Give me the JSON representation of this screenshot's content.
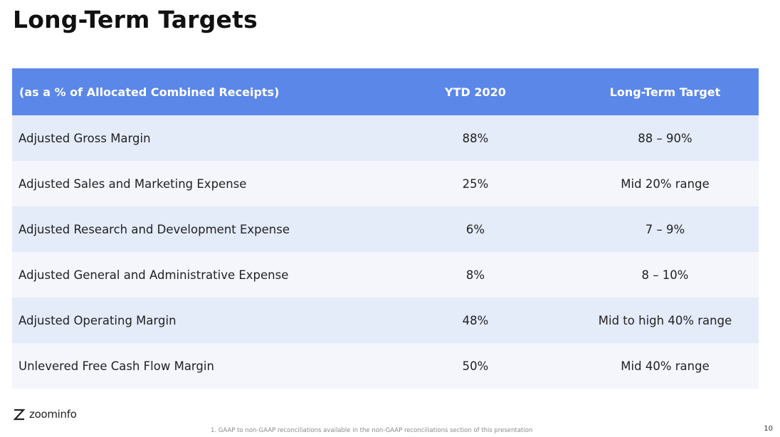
{
  "title": "Long-Term Targets",
  "table": {
    "headers": [
      "(as a % of Allocated Combined Receipts)",
      "YTD 2020",
      "Long-Term Target"
    ],
    "rows": [
      [
        "Adjusted Gross Margin",
        "88%",
        "88 – 90%"
      ],
      [
        "Adjusted Sales and Marketing Expense",
        "25%",
        "Mid 20% range"
      ],
      [
        "Adjusted Research and Development Expense",
        "6%",
        "7 – 9%"
      ],
      [
        "Adjusted General and Administrative Expense",
        "8%",
        "8 – 10%"
      ],
      [
        "Adjusted Operating Margin",
        "48%",
        "Mid to high 40% range"
      ],
      [
        "Unlevered Free Cash Flow Margin",
        "50%",
        "Mid 40% range"
      ]
    ]
  },
  "brand": {
    "name": "zoominfo",
    "icon": "zoominfo-z-icon"
  },
  "footnote": "1.  GAAP to non-GAAP reconciliations available in the non-GAAP reconciliations section of this presentation",
  "page_number": "10",
  "colors": {
    "header_bg": "#5b87e9",
    "row_odd": "#e4ebf9",
    "row_even": "#f4f6fc"
  }
}
